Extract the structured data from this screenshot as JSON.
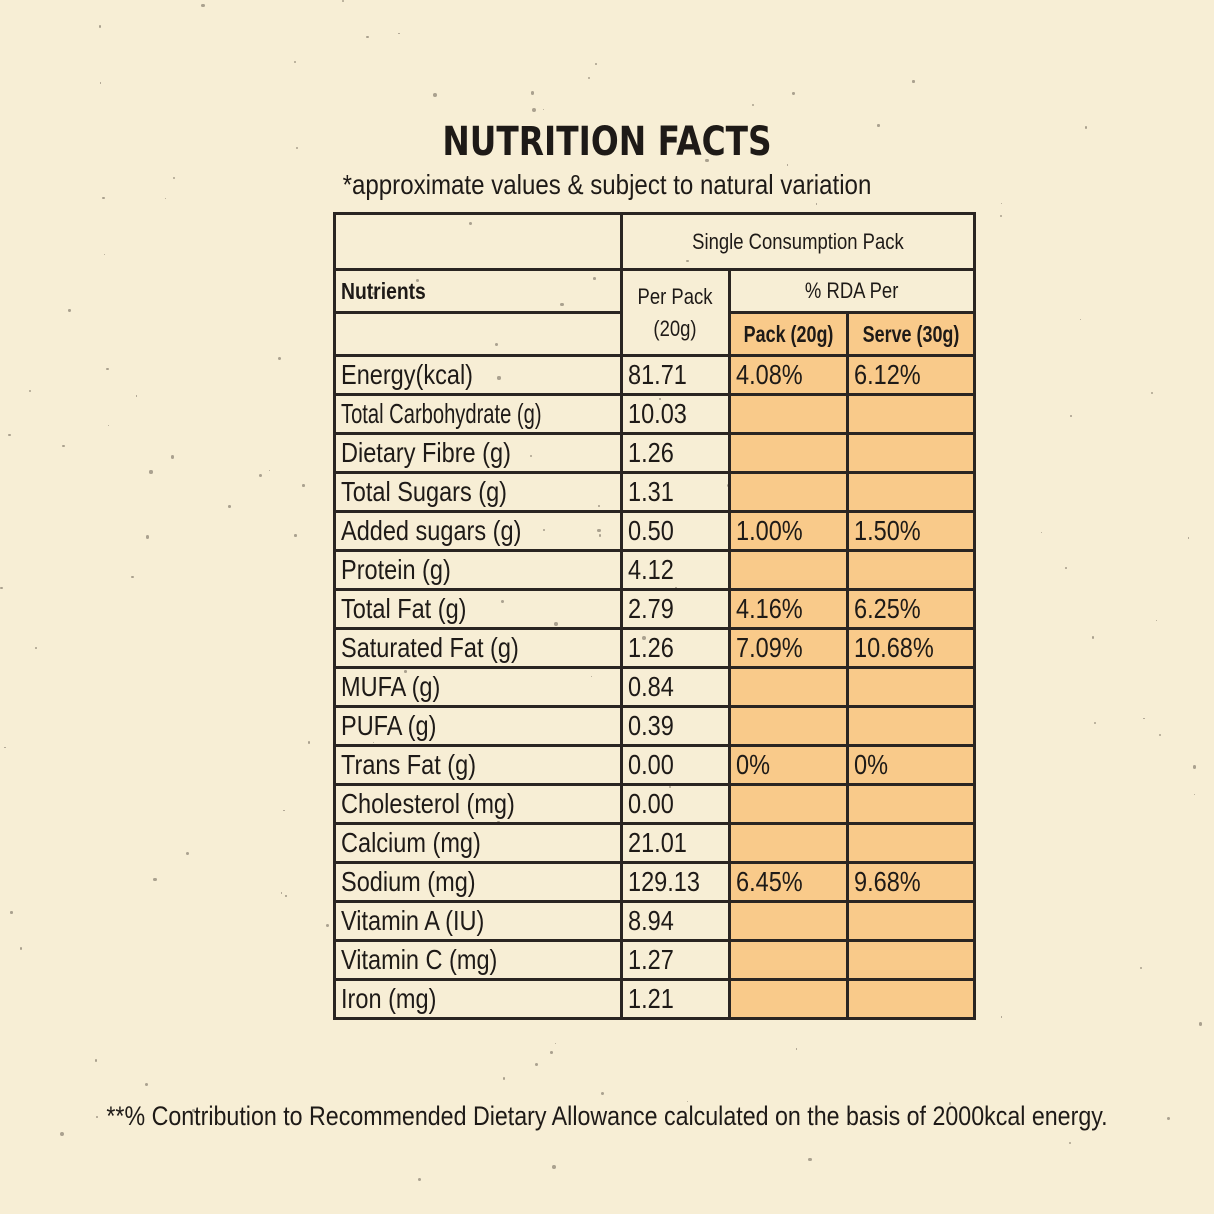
{
  "title": "NUTRITION FACTS",
  "subtitle": "*approximate values & subject to natural variation",
  "table": {
    "group_header": "Single Consumption Pack",
    "col_nutrients": "Nutrients",
    "col_per_pack": "Per Pack (20g)",
    "col_rda": "% RDA Per",
    "col_pack20": "Pack (20g)",
    "col_serve30": "Serve (30g)",
    "rows": [
      {
        "name": "Energy(kcal)",
        "value": "81.71",
        "pack": "4.08%",
        "serve": "6.12%"
      },
      {
        "name": "Total Carbohydrate (g)",
        "value": "10.03",
        "pack": "",
        "serve": ""
      },
      {
        "name": "Dietary Fibre (g)",
        "value": "1.26",
        "pack": "",
        "serve": ""
      },
      {
        "name": "Total Sugars (g)",
        "value": "1.31",
        "pack": "",
        "serve": ""
      },
      {
        "name": "Added sugars (g)",
        "value": "0.50",
        "pack": "1.00%",
        "serve": "1.50%"
      },
      {
        "name": "Protein (g)",
        "value": "4.12",
        "pack": "",
        "serve": ""
      },
      {
        "name": "Total Fat (g)",
        "value": "2.79",
        "pack": "4.16%",
        "serve": "6.25%"
      },
      {
        "name": "Saturated Fat (g)",
        "value": "1.26",
        "pack": "7.09%",
        "serve": "10.68%"
      },
      {
        "name": "MUFA (g)",
        "value": "0.84",
        "pack": "",
        "serve": ""
      },
      {
        "name": "PUFA (g)",
        "value": "0.39",
        "pack": "",
        "serve": ""
      },
      {
        "name": "Trans Fat (g)",
        "value": "0.00",
        "pack": "0%",
        "serve": "0%"
      },
      {
        "name": "Cholesterol (mg)",
        "value": "0.00",
        "pack": "",
        "serve": ""
      },
      {
        "name": "Calcium (mg)",
        "value": "21.01",
        "pack": "",
        "serve": ""
      },
      {
        "name": "Sodium (mg)",
        "value": "129.13",
        "pack": "6.45%",
        "serve": "9.68%"
      },
      {
        "name": "Vitamin A (IU)",
        "value": "8.94",
        "pack": "",
        "serve": ""
      },
      {
        "name": "Vitamin C (mg)",
        "value": "1.27",
        "pack": "",
        "serve": ""
      },
      {
        "name": "Iron (mg)",
        "value": "1.21",
        "pack": "",
        "serve": ""
      }
    ]
  },
  "footnote": "**% Contribution to Recommended Dietary Allowance calculated on the basis of 2000kcal energy.",
  "colors": {
    "background": "#f7eed5",
    "rda_fill": "#f9ca8a",
    "border": "#2a2522"
  }
}
